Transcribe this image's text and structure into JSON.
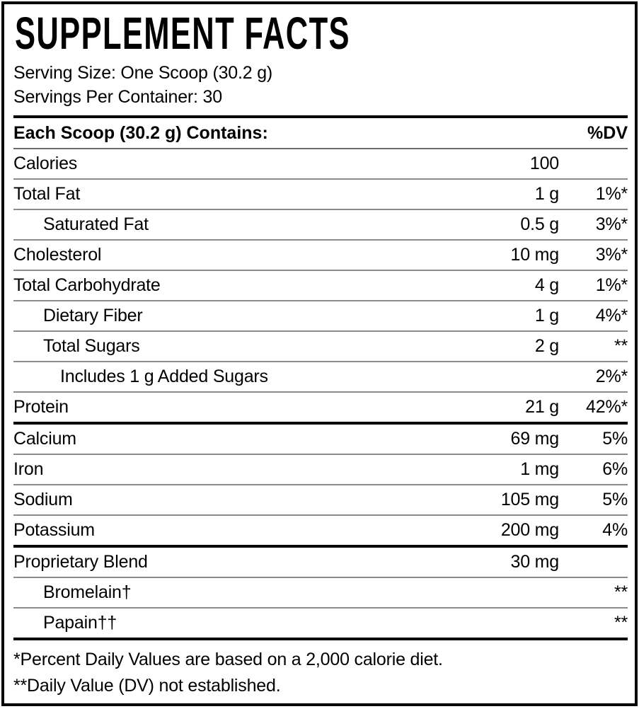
{
  "label": {
    "title": "SUPPLEMENT FACTS",
    "serving_size": "Serving Size: One Scoop (30.2 g)",
    "servings_per_container": "Servings Per Container: 30",
    "table_header": {
      "left": "Each Scoop (30.2 g) Contains:",
      "right": "%DV"
    },
    "rows": [
      {
        "name": "Calories",
        "amount": "100",
        "dv": "",
        "indent": 0,
        "section_end": false
      },
      {
        "name": "Total Fat",
        "amount": "1 g",
        "dv": "1%*",
        "indent": 0,
        "section_end": false
      },
      {
        "name": "Saturated Fat",
        "amount": "0.5 g",
        "dv": "3%*",
        "indent": 1,
        "section_end": false
      },
      {
        "name": "Cholesterol",
        "amount": "10 mg",
        "dv": "3%*",
        "indent": 0,
        "section_end": false
      },
      {
        "name": "Total Carbohydrate",
        "amount": "4 g",
        "dv": "1%*",
        "indent": 0,
        "section_end": false
      },
      {
        "name": "Dietary Fiber",
        "amount": "1 g",
        "dv": "4%*",
        "indent": 1,
        "section_end": false
      },
      {
        "name": "Total Sugars",
        "amount": "2 g",
        "dv": "**",
        "indent": 1,
        "section_end": false
      },
      {
        "name": "Includes 1 g Added Sugars",
        "amount": "",
        "dv": "2%*",
        "indent": 2,
        "section_end": false
      },
      {
        "name": "Protein",
        "amount": "21 g",
        "dv": "42%*",
        "indent": 0,
        "section_end": true
      },
      {
        "name": "Calcium",
        "amount": "69 mg",
        "dv": "5%",
        "indent": 0,
        "section_end": false
      },
      {
        "name": "Iron",
        "amount": "1 mg",
        "dv": "6%",
        "indent": 0,
        "section_end": false
      },
      {
        "name": "Sodium",
        "amount": "105 mg",
        "dv": "5%",
        "indent": 0,
        "section_end": false
      },
      {
        "name": "Potassium",
        "amount": "200 mg",
        "dv": "4%",
        "indent": 0,
        "section_end": true
      },
      {
        "name": "Proprietary Blend",
        "amount": "30 mg",
        "dv": "",
        "indent": 0,
        "section_end": false
      },
      {
        "name": "Bromelain†",
        "amount": "",
        "dv": "**",
        "indent": 1,
        "section_end": false
      },
      {
        "name": "Papain††",
        "amount": "",
        "dv": "**",
        "indent": 1,
        "section_end": true
      }
    ],
    "footnotes": [
      "*Percent Daily Values are based on a 2,000 calorie diet.",
      "**Daily Value (DV) not established."
    ],
    "colors": {
      "border": "#000000",
      "divider": "#8c8c8c",
      "text": "#000000",
      "background": "#ffffff"
    }
  }
}
